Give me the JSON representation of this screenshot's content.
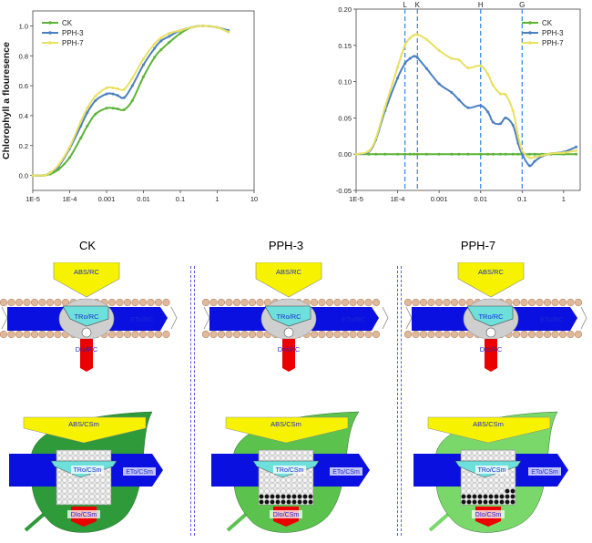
{
  "chart_data": [
    {
      "type": "line",
      "title": "",
      "xlabel": "",
      "ylabel": "Chlorophyll a flouresence",
      "xscale": "log",
      "xlim": [
        1e-05,
        10
      ],
      "ylim": [
        -0.1,
        1.1
      ],
      "xticks": [
        "1E-5",
        "1E-4",
        "0.001",
        "0.01",
        "0.1",
        "1",
        "10"
      ],
      "yticks": [
        "0.0",
        "0.2",
        "0.4",
        "0.6",
        "0.8",
        "1.0"
      ],
      "legend": "top-left",
      "x": [
        1e-05,
        2e-05,
        3e-05,
        5e-05,
        0.0001,
        0.0002,
        0.0003,
        0.0005,
        0.001,
        0.0015,
        0.002,
        0.003,
        0.005,
        0.01,
        0.02,
        0.03,
        0.05,
        0.1,
        0.2,
        0.4,
        1,
        2
      ],
      "series": [
        {
          "name": "CK",
          "color": "#5cb338",
          "values": [
            0.0,
            0.0,
            0.01,
            0.04,
            0.12,
            0.25,
            0.33,
            0.41,
            0.45,
            0.45,
            0.445,
            0.44,
            0.5,
            0.66,
            0.79,
            0.84,
            0.89,
            0.95,
            0.99,
            1.0,
            0.99,
            0.96
          ]
        },
        {
          "name": "PPH-3",
          "color": "#4a7fc0",
          "values": [
            0.0,
            0.0,
            0.02,
            0.06,
            0.18,
            0.33,
            0.42,
            0.5,
            0.545,
            0.545,
            0.535,
            0.52,
            0.6,
            0.74,
            0.85,
            0.9,
            0.93,
            0.97,
            0.99,
            1.0,
            0.99,
            0.97
          ]
        },
        {
          "name": "PPH-7",
          "color": "#e8e060",
          "values": [
            0.0,
            0.0,
            0.02,
            0.07,
            0.19,
            0.36,
            0.45,
            0.53,
            0.585,
            0.585,
            0.58,
            0.575,
            0.65,
            0.78,
            0.88,
            0.92,
            0.95,
            0.97,
            0.99,
            1.0,
            0.99,
            0.96
          ]
        }
      ]
    },
    {
      "type": "line",
      "title": "",
      "xlabel": "",
      "ylabel": "",
      "xscale": "log",
      "xlim": [
        1e-05,
        2.5
      ],
      "ylim": [
        -0.05,
        0.2
      ],
      "xticks": [
        "1E-5",
        "1E-4",
        "0.001",
        "0.01",
        "0.1",
        "1"
      ],
      "yticks": [
        "-0.05",
        "0.00",
        "0.05",
        "0.10",
        "0.15",
        "0.20"
      ],
      "legend": "top-right",
      "markers": [
        {
          "label": "L",
          "x": 0.00015
        },
        {
          "label": "K",
          "x": 0.0003
        },
        {
          "label": "H",
          "x": 0.01
        },
        {
          "label": "G",
          "x": 0.1
        }
      ],
      "x": [
        1e-05,
        2e-05,
        3e-05,
        5e-05,
        0.0001,
        0.00015,
        0.0002,
        0.00025,
        0.0003,
        0.0005,
        0.001,
        0.002,
        0.003,
        0.005,
        0.01,
        0.015,
        0.02,
        0.03,
        0.04,
        0.06,
        0.08,
        0.1,
        0.15,
        0.2,
        0.3,
        0.5,
        1,
        2
      ],
      "series": [
        {
          "name": "CK",
          "color": "#5cb338",
          "values": [
            0,
            0,
            0,
            0,
            0,
            0,
            0,
            0,
            0,
            0,
            0,
            0,
            0,
            0,
            0,
            0,
            0,
            0,
            0,
            0,
            0,
            0,
            0,
            0,
            0,
            0,
            0,
            0
          ]
        },
        {
          "name": "PPH-3",
          "color": "#4a7fc0",
          "values": [
            0,
            0.003,
            0.02,
            0.06,
            0.105,
            0.125,
            0.132,
            0.135,
            0.133,
            0.118,
            0.097,
            0.085,
            0.075,
            0.064,
            0.067,
            0.058,
            0.044,
            0.042,
            0.05,
            0.04,
            0.015,
            0.0,
            -0.016,
            -0.01,
            -0.003,
            0.001,
            0.003,
            0.01
          ]
        },
        {
          "name": "PPH-7",
          "color": "#e8e060",
          "values": [
            0,
            0.004,
            0.022,
            0.065,
            0.12,
            0.15,
            0.16,
            0.164,
            0.165,
            0.158,
            0.143,
            0.132,
            0.13,
            0.119,
            0.122,
            0.11,
            0.095,
            0.083,
            0.082,
            0.06,
            0.025,
            0.005,
            -0.005,
            -0.004,
            -0.002,
            0.001,
            0.002,
            0.005
          ]
        }
      ]
    }
  ],
  "panels": [
    {
      "title": "CK",
      "rc": {
        "abs": "ABS/RC",
        "tr": "TRo/RC",
        "et": "ETo/RC",
        "di": "DIo/RC"
      },
      "cs": {
        "abs": "ABS/CSm",
        "tr": "TRo/CSm",
        "et": "ETo/CSm",
        "di": "DIo/CSm"
      },
      "leaf_color": "#2e9a3a",
      "closed_rows": 0
    },
    {
      "title": "PPH-3",
      "rc": {
        "abs": "ABS/RC",
        "tr": "TRo/RC",
        "et": "ETo/RC",
        "di": "DIo/RC"
      },
      "cs": {
        "abs": "ABS/CSm",
        "tr": "TRo/CSm",
        "et": "ETo/CSm",
        "di": "DIo/CSm"
      },
      "leaf_color": "#5cc24e",
      "closed_rows": 2
    },
    {
      "title": "PPH-7",
      "rc": {
        "abs": "ABS/RC",
        "tr": "TRo/RC",
        "et": "ETo/RC",
        "di": "DIo/RC"
      },
      "cs": {
        "abs": "ABS/CSm",
        "tr": "TRo/CSm",
        "et": "ETo/CSm",
        "di": "DIo/CSm"
      },
      "leaf_color": "#7ad86a",
      "closed_rows": 2.2
    }
  ]
}
